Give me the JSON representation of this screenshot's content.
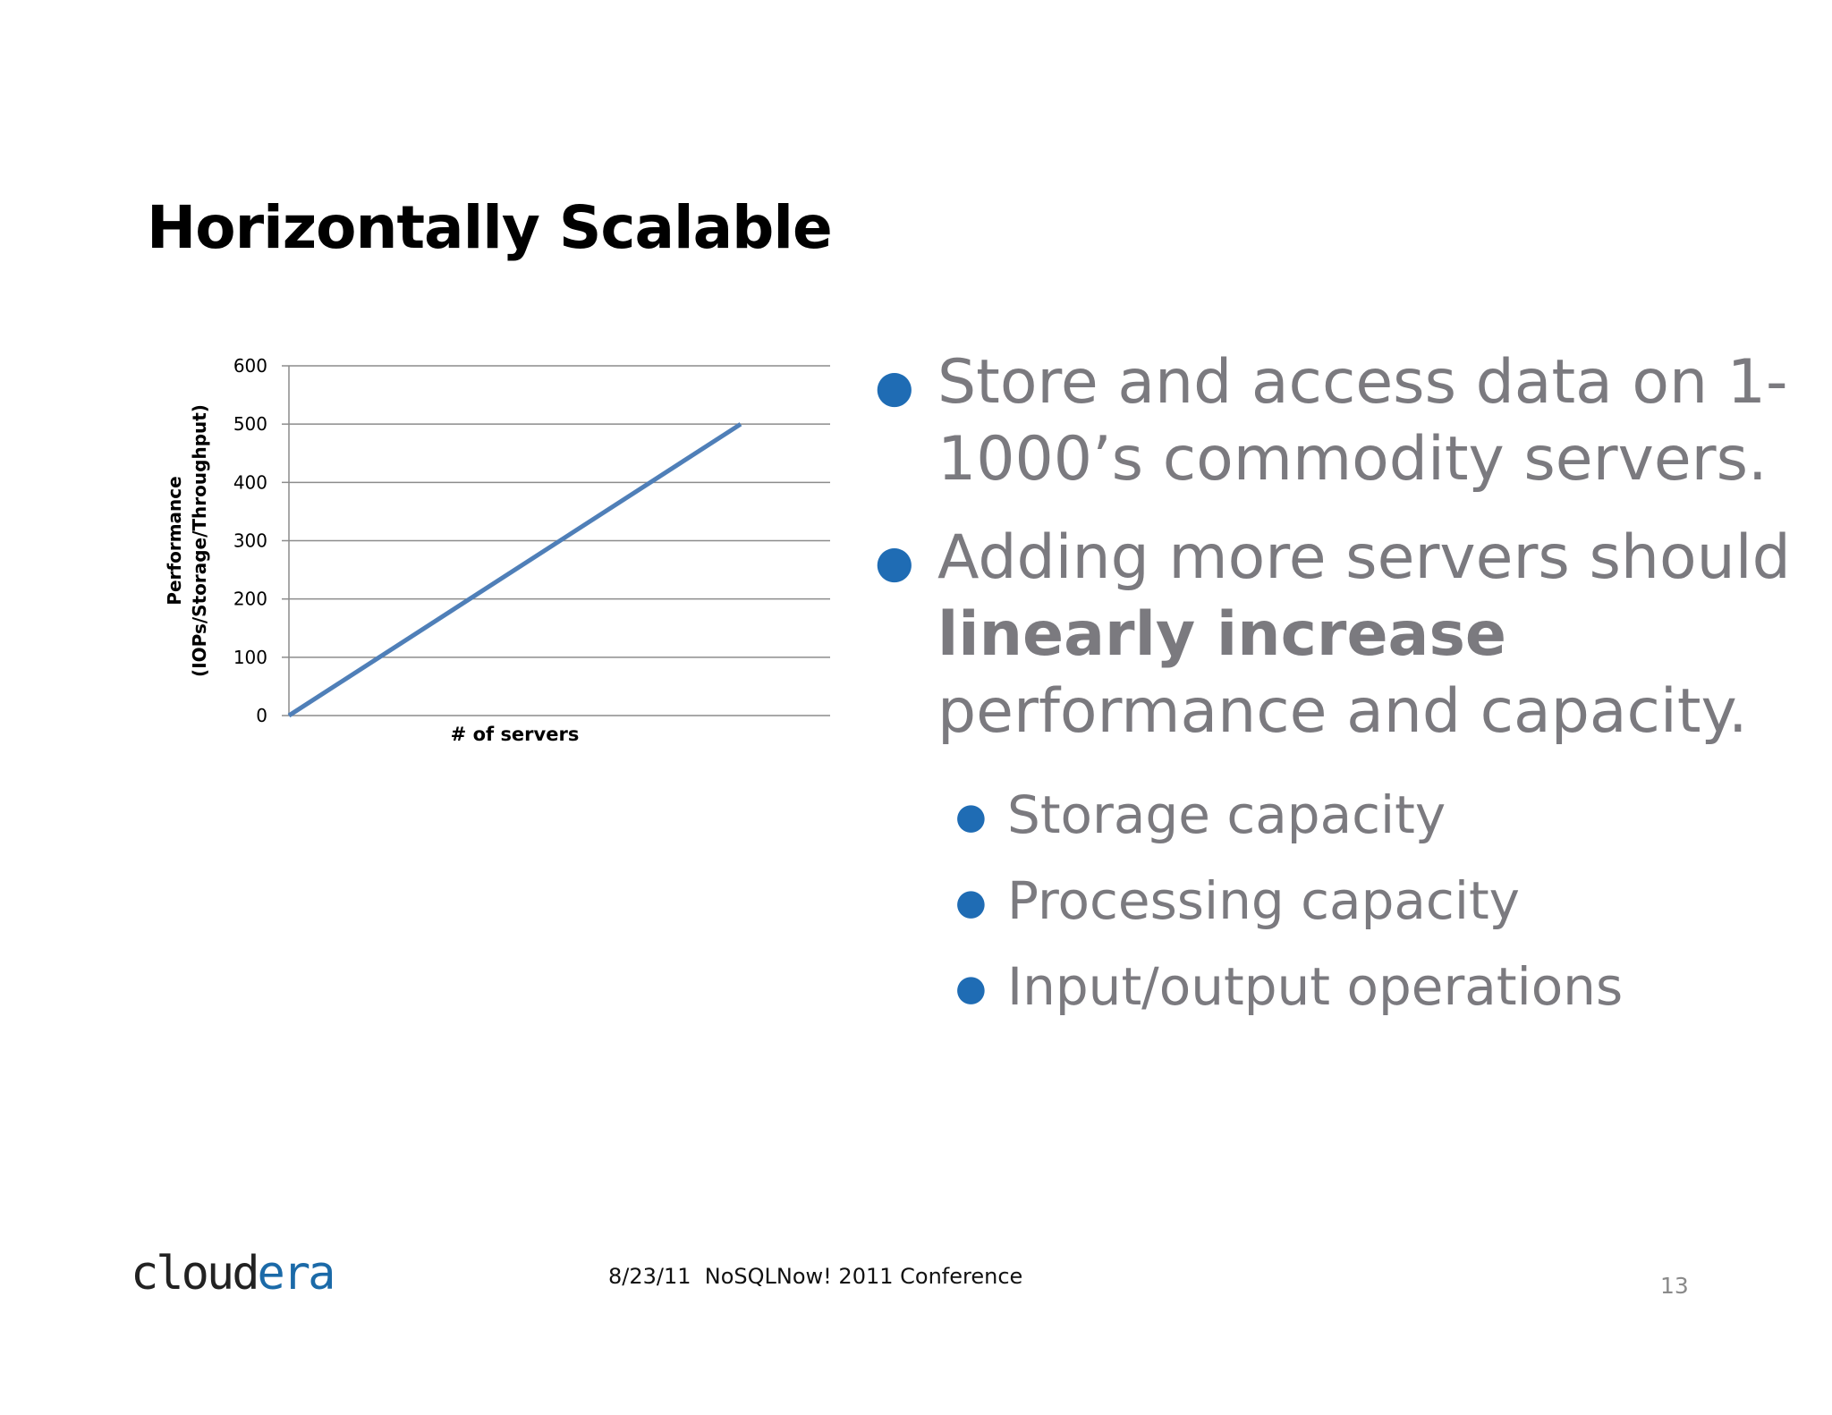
{
  "slide": {
    "title": "Horizontally Scalable",
    "bullets": {
      "b1": "Store and access data on 1-1000’s commodity servers.",
      "b2_pre": "Adding more servers should ",
      "b2_bold": "linearly increase",
      "b2_post": " performance and capacity.",
      "sub": [
        "Storage capacity",
        "Processing capacity",
        "Input/output operations"
      ]
    },
    "footer": {
      "text": "8/23/11  NoSQLNow! 2011 Conference",
      "page_number": "13",
      "logo_part1": "cloud",
      "logo_part2": "era"
    },
    "colors": {
      "bullet": "#1f6cb4",
      "series": "#4f7fb8",
      "body_text": "#7b7a7f"
    }
  },
  "chart_data": {
    "type": "line",
    "ylabel_line1": "Performance",
    "ylabel_line2": "(IOPs/Storage/Throughput)",
    "xlabel": "# of servers",
    "ylim": [
      0,
      600
    ],
    "yticks": [
      0,
      100,
      200,
      300,
      400,
      500,
      600
    ],
    "grid": true,
    "series": [
      {
        "values": [
          0,
          500
        ]
      }
    ]
  }
}
